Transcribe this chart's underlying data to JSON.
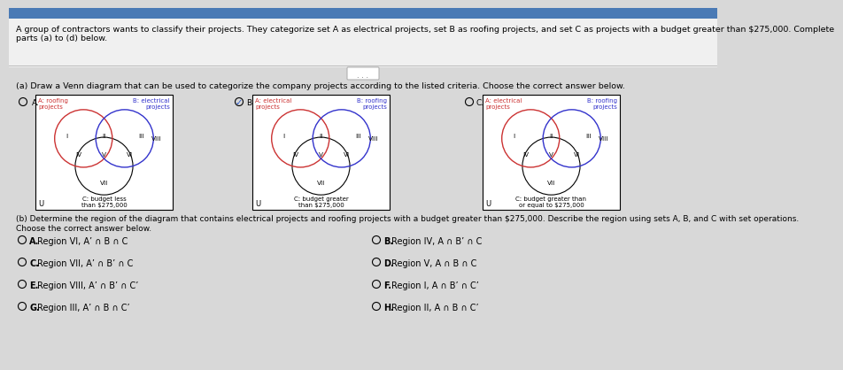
{
  "bg_color": "#d8d8d8",
  "top_bar_color": "#4a7ab5",
  "top_bar_height": 12,
  "title_line1": "A group of contractors wants to classify their projects. They categorize set A as electrical projects, set B as roofing projects, and set C as projects with a budget greater than $275,000. Complete",
  "title_line2": "parts (a) to (d) below.",
  "part_a_text": "(a) Draw a Venn diagram that can be used to categorize the company projects according to the listed criteria. Choose the correct answer below.",
  "part_b_line1": "(b) Determine the region of the diagram that contains electrical projects and roofing projects with a budget greater than $275,000. Describe the region using sets A, B, and C with set operations.",
  "part_b_line2": "Choose the correct answer below.",
  "venns": [
    {
      "label": "A",
      "checked": false,
      "A_name": "A: roofing\nprojects",
      "B_name": "B: electrical\nprojects",
      "C_name": "C: budget less\nthan $275,000",
      "A_color": "#cc3333",
      "B_color": "#3333cc"
    },
    {
      "label": "B",
      "checked": true,
      "A_name": "A: electrical\nprojects",
      "B_name": "B: roofing\nprojects",
      "C_name": "C: budget greater\nthan $275,000",
      "A_color": "#cc3333",
      "B_color": "#3333cc"
    },
    {
      "label": "C",
      "checked": false,
      "A_name": "A: electrical\nprojects",
      "B_name": "B: roofing\nprojects",
      "C_name": "C: budget greater than\nor equal to $275,000",
      "A_color": "#cc3333",
      "B_color": "#3333cc"
    }
  ],
  "options_left": [
    [
      "A.",
      "Region VI, A’ ∩ B ∩ C"
    ],
    [
      "C.",
      "Region VII, A’ ∩ B’ ∩ C"
    ],
    [
      "E.",
      "Region VIII, A’ ∩ B’ ∩ C’"
    ],
    [
      "G.",
      "Region III, A’ ∩ B ∩ C’"
    ]
  ],
  "options_right": [
    [
      "B.",
      "Region IV, A ∩ B’ ∩ C"
    ],
    [
      "D.",
      "Region V, A ∩ B ∩ C"
    ],
    [
      "F.",
      "Region I, A ∩ B’ ∩ C’"
    ],
    [
      "H.",
      "Region II, A ∩ B ∩ C’"
    ]
  ]
}
